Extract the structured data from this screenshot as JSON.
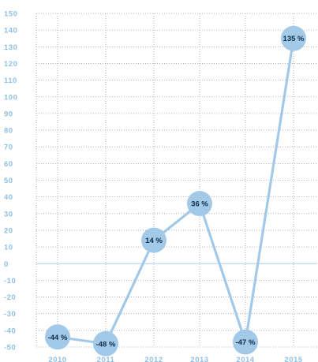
{
  "chart_data": {
    "type": "line",
    "title": "",
    "xlabel": "",
    "ylabel": "",
    "categories": [
      "2010",
      "2011",
      "2012",
      "2013",
      "2014",
      "2015"
    ],
    "series": [
      {
        "values": [
          -44,
          -48,
          14,
          36,
          -47,
          135
        ],
        "labels": [
          "-44 %",
          "-48 %",
          "14 %",
          "36 %",
          "-47 %",
          "135 %"
        ]
      }
    ],
    "ylim": [
      -50,
      150
    ],
    "yticks": [
      150,
      140,
      130,
      120,
      110,
      100,
      90,
      80,
      70,
      60,
      50,
      40,
      30,
      20,
      10,
      0,
      -10,
      -20,
      -30,
      -40,
      -50
    ],
    "grid": true,
    "legend": "none",
    "colors": {
      "line": "#a3c9e8",
      "marker": "#a3c9e8",
      "label_text": "#0f2c4a",
      "tick_text": "#8fc1e3",
      "zero_line": "#bcd9ee",
      "grid": "#9aa4ad"
    }
  }
}
